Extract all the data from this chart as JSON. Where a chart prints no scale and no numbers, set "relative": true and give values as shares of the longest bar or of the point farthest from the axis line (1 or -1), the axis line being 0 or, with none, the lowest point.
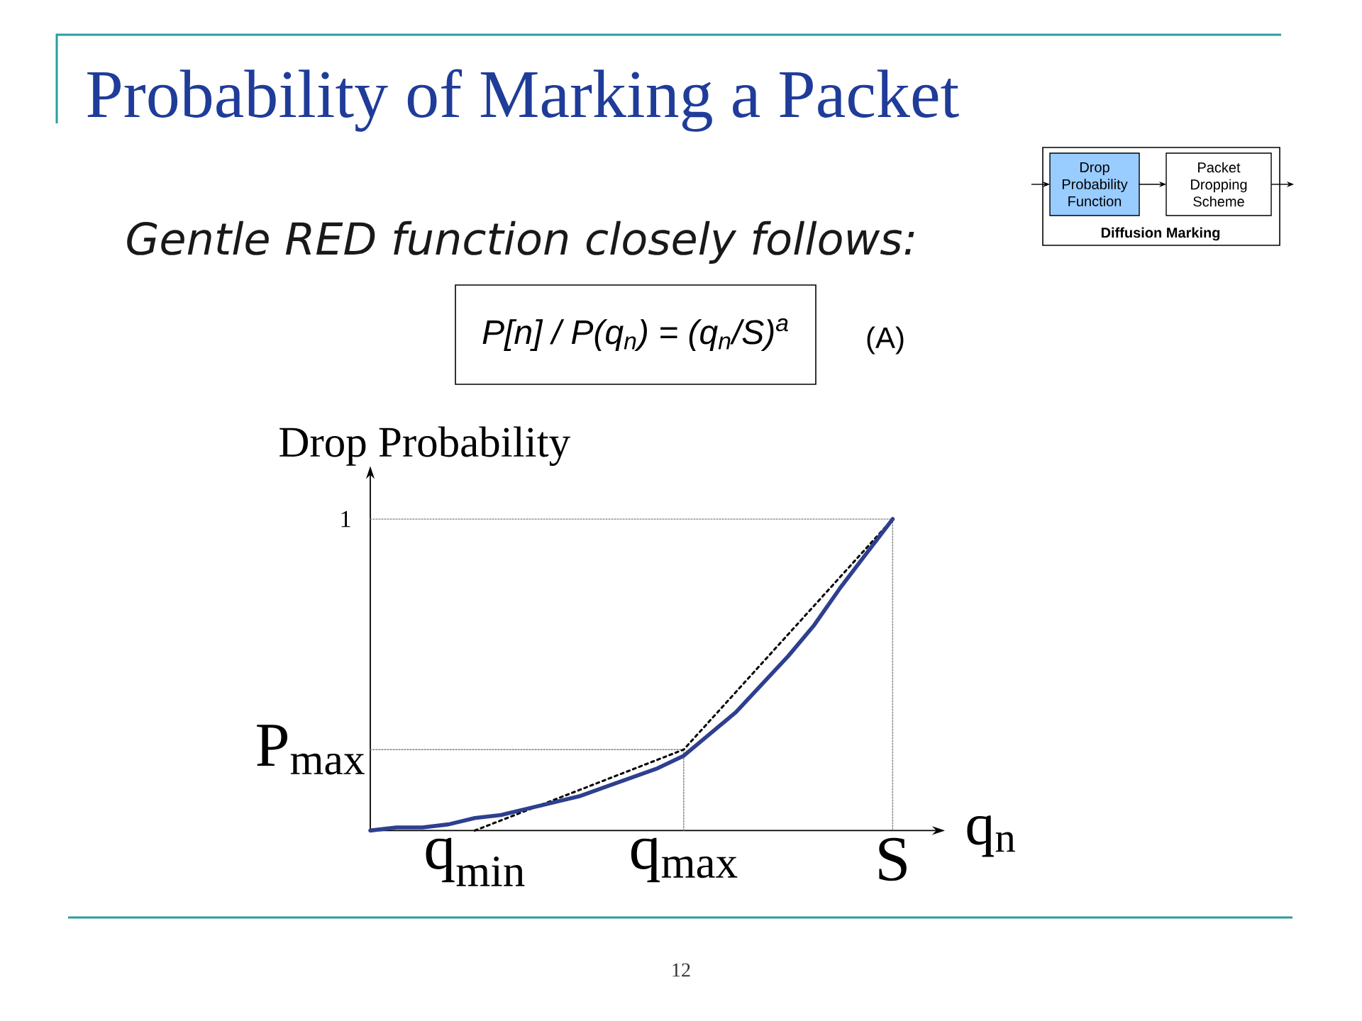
{
  "chart_data": {
    "type": "line",
    "relative": true,
    "title": "Probability of Marking a Packet",
    "subtitle": "Gentle RED function closely follows:",
    "xlabel": "q$_{n}$",
    "ylabel": "Drop Probability",
    "categories": [
      null,
      null,
      null,
      null,
      "q$_{min}$",
      null,
      null,
      null,
      null,
      null,
      null,
      null,
      "q$_{max}$",
      null,
      null,
      null,
      null,
      null,
      null,
      null,
      "S"
    ],
    "series": [
      {
        "type": "line",
        "line_style": "dotted",
        "color": "#808080",
        "values": [
          1,
          1,
          1,
          1,
          1,
          1,
          1,
          1,
          1,
          1,
          1,
          1,
          1,
          1,
          1,
          1,
          1,
          1,
          1,
          1,
          1
        ]
      },
      {
        "type": "line",
        "line_style": "dotted",
        "color": "#808080",
        "x": [
          "S",
          "S"
        ],
        "values": [
          1,
          0
        ]
      },
      {
        "type": "line",
        "line_style": "dotted",
        "color": "#808080",
        "values": [
          0.26,
          0.26,
          0.26,
          0.26,
          0.26,
          0.26,
          0.26,
          0.26,
          0.26,
          0.26,
          0.26,
          0.26,
          0.26,
          null,
          null,
          null,
          null,
          null,
          null,
          null,
          null
        ]
      },
      {
        "type": "line",
        "line_style": "dotted",
        "color": "#808080",
        "x": [
          "q$_{max}$",
          "q$_{max}$"
        ],
        "values": [
          0.26,
          0
        ]
      },
      {
        "type": "line",
        "line_style": "dashed",
        "color": "#000000",
        "x": [
          "q$_{min}$",
          "q$_{max}$",
          "S"
        ],
        "values": [
          0,
          0.26,
          1
        ]
      },
      {
        "type": "line",
        "line_style": "solid",
        "color": "#2e3f8f",
        "values": [
          0,
          0.01,
          0.01,
          0.02,
          0.04,
          0.05,
          0.07,
          0.09,
          0.11,
          0.14,
          0.17,
          0.2,
          0.24,
          0.31,
          0.38,
          0.47,
          0.56,
          0.66,
          0.78,
          0.89,
          1
        ]
      }
    ],
    "annotations": [
      "P[n] / P(q$_{n}$) = (q$_{n}$/S)$^{a}$",
      "(A)",
      "Drop Probability Function",
      "Packet Dropping Scheme",
      "Diffusion Marking",
      "12",
      "1",
      "P$_{max}$"
    ]
  }
}
